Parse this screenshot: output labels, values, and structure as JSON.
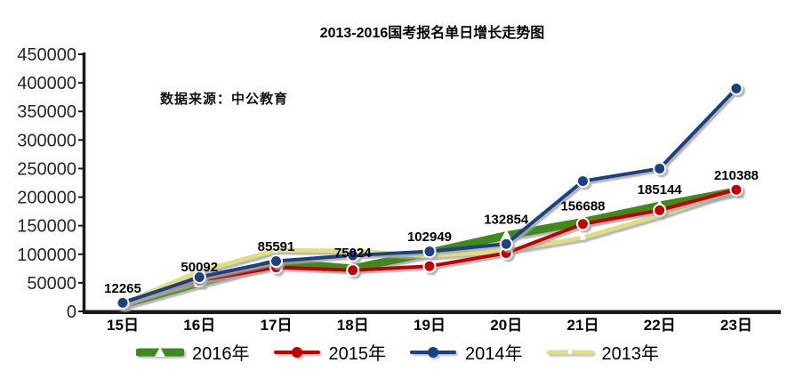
{
  "title": "2013-2016国考报名单日增长走势图",
  "source_note": "数据来源：中公教育",
  "chart_data": {
    "type": "line",
    "title": "2013-2016国考报名单日增长走势图",
    "categories": [
      "15日",
      "16日",
      "17日",
      "18日",
      "19日",
      "20日",
      "21日",
      "22日",
      "23日"
    ],
    "series": [
      {
        "name": "2016年",
        "color": "#3F8A1F",
        "line_width": 9,
        "marker": "white-triangle",
        "value_labels": true,
        "values": [
          12265,
          50092,
          85591,
          75024,
          102949,
          132854,
          156688,
          185144,
          210388
        ]
      },
      {
        "name": "2015年",
        "color": "#C00000",
        "line_width": 4,
        "marker": "filled-circle",
        "value_labels": false,
        "values": [
          16000,
          54000,
          77000,
          72000,
          79000,
          102000,
          153000,
          177000,
          213000
        ]
      },
      {
        "name": "2014年",
        "color": "#1B4080",
        "line_width": 4,
        "marker": "filled-circle",
        "value_labels": false,
        "values": [
          15000,
          60000,
          88000,
          98000,
          105000,
          118000,
          228000,
          250000,
          390000
        ]
      },
      {
        "name": "2013年",
        "color": "#DFDF82",
        "line_width": 5,
        "marker": "white-dot",
        "value_labels": false,
        "values": [
          14000,
          70000,
          107000,
          106000,
          97000,
          106000,
          129000,
          168000,
          212000
        ]
      }
    ],
    "draw_order": [
      0,
      3,
      1,
      2
    ],
    "ylim": [
      0,
      450000
    ],
    "y_ticks": [
      0,
      50000,
      100000,
      150000,
      200000,
      250000,
      300000,
      350000,
      400000,
      450000
    ],
    "xlabel": "",
    "ylabel": "",
    "grid": false,
    "legend_position": "bottom"
  },
  "colors": {
    "axis": "#1A1A1A",
    "tick_text": "#262626",
    "label_text": "#000000",
    "shadow": "#A8A8A8"
  }
}
